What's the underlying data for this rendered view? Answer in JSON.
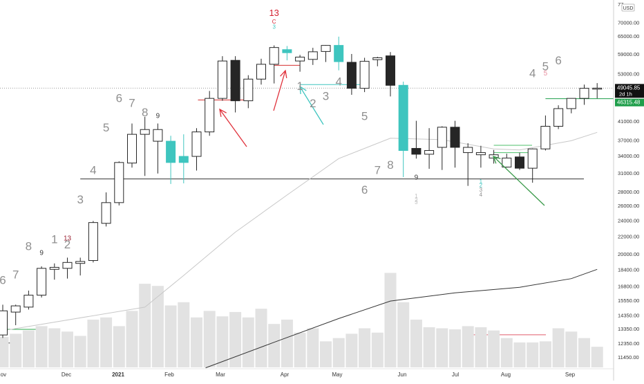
{
  "chart_data": {
    "type": "candlestick",
    "currency": "USD",
    "y_scale": "log",
    "ylim": [
      10800,
      78000
    ],
    "x_axis_labels": [
      "Nov",
      "Dec",
      "2021",
      "Feb",
      "Mar",
      "Apr",
      "May",
      "Jun",
      "Jul",
      "Aug",
      "Sep"
    ],
    "price_axis_labels": [
      "11450.00",
      "12350.00",
      "13350.00",
      "14350.00",
      "15550.00",
      "16800.00",
      "18400.00",
      "20000.00",
      "22000.00",
      "24000.00",
      "26000.00",
      "28000.00",
      "31000.00",
      "34000.00",
      "37000.00",
      "41000.00",
      "45000.00",
      "53000.00",
      "59000.00",
      "65000.00",
      "70000.00",
      "77"
    ],
    "last_price_label": "49045.85",
    "countdown_label": "2d 1h",
    "green_level_label": "46315.48",
    "green_level_color": "#1e9e4a",
    "bull_teal_color": "#3ec5bf",
    "bear_color": "#262626",
    "candles": [
      {
        "o": 12900,
        "h": 15200,
        "l": 12700,
        "c": 14700,
        "kind": "up"
      },
      {
        "o": 14600,
        "h": 15200,
        "l": 13600,
        "c": 15100,
        "kind": "up"
      },
      {
        "o": 15000,
        "h": 16400,
        "l": 14800,
        "c": 16000,
        "kind": "up"
      },
      {
        "o": 16000,
        "h": 18700,
        "l": 15800,
        "c": 18500,
        "kind": "up"
      },
      {
        "o": 18400,
        "h": 19000,
        "l": 17400,
        "c": 18600,
        "kind": "up"
      },
      {
        "o": 18500,
        "h": 19600,
        "l": 17500,
        "c": 19100,
        "kind": "up"
      },
      {
        "o": 19000,
        "h": 19600,
        "l": 17800,
        "c": 19200,
        "kind": "up"
      },
      {
        "o": 19300,
        "h": 23900,
        "l": 19100,
        "c": 23700,
        "kind": "up"
      },
      {
        "o": 23600,
        "h": 27900,
        "l": 23200,
        "c": 26400,
        "kind": "up"
      },
      {
        "o": 26400,
        "h": 33000,
        "l": 26000,
        "c": 32800,
        "kind": "up"
      },
      {
        "o": 32700,
        "h": 40500,
        "l": 31900,
        "c": 38200,
        "kind": "up"
      },
      {
        "o": 38200,
        "h": 42000,
        "l": 30500,
        "c": 39200,
        "kind": "up"
      },
      {
        "o": 39200,
        "h": 40500,
        "l": 30900,
        "c": 36800,
        "kind": "up"
      },
      {
        "o": 36800,
        "h": 37900,
        "l": 29200,
        "c": 32800,
        "kind": "bull_teal"
      },
      {
        "o": 32800,
        "h": 38200,
        "l": 29300,
        "c": 33900,
        "kind": "bull_teal"
      },
      {
        "o": 33900,
        "h": 39500,
        "l": 31400,
        "c": 38700,
        "kind": "up"
      },
      {
        "o": 38700,
        "h": 48300,
        "l": 37900,
        "c": 46400,
        "kind": "up"
      },
      {
        "o": 46400,
        "h": 58300,
        "l": 45800,
        "c": 56800,
        "kind": "up"
      },
      {
        "o": 57000,
        "h": 58300,
        "l": 43000,
        "c": 45800,
        "kind": "down"
      },
      {
        "o": 45800,
        "h": 52600,
        "l": 44000,
        "c": 51500,
        "kind": "up"
      },
      {
        "o": 51500,
        "h": 57500,
        "l": 50000,
        "c": 55800,
        "kind": "up"
      },
      {
        "o": 55800,
        "h": 61800,
        "l": 50300,
        "c": 61100,
        "kind": "up"
      },
      {
        "o": 60400,
        "h": 61600,
        "l": 57000,
        "c": 59400,
        "kind": "bull_teal"
      },
      {
        "o": 56800,
        "h": 58700,
        "l": 53600,
        "c": 58000,
        "kind": "up"
      },
      {
        "o": 57300,
        "h": 61000,
        "l": 55600,
        "c": 59700,
        "kind": "up"
      },
      {
        "o": 59800,
        "h": 61900,
        "l": 56500,
        "c": 61800,
        "kind": "up"
      },
      {
        "o": 61800,
        "h": 64800,
        "l": 54000,
        "c": 56600,
        "kind": "bull_teal"
      },
      {
        "o": 56400,
        "h": 59000,
        "l": 47300,
        "c": 49000,
        "kind": "down"
      },
      {
        "o": 49000,
        "h": 57800,
        "l": 48000,
        "c": 56700,
        "kind": "up"
      },
      {
        "o": 57200,
        "h": 58100,
        "l": 55200,
        "c": 57800,
        "kind": "up"
      },
      {
        "o": 58400,
        "h": 59600,
        "l": 46900,
        "c": 49800,
        "kind": "down"
      },
      {
        "o": 49800,
        "h": 50800,
        "l": 30300,
        "c": 35000,
        "kind": "bull_teal"
      },
      {
        "o": 35400,
        "h": 41100,
        "l": 33500,
        "c": 34300,
        "kind": "down"
      },
      {
        "o": 34300,
        "h": 39500,
        "l": 31700,
        "c": 35000,
        "kind": "up"
      },
      {
        "o": 35600,
        "h": 39900,
        "l": 31500,
        "c": 39700,
        "kind": "up"
      },
      {
        "o": 39700,
        "h": 41100,
        "l": 31900,
        "c": 35600,
        "kind": "down"
      },
      {
        "o": 35600,
        "h": 36400,
        "l": 28900,
        "c": 34600,
        "kind": "up"
      },
      {
        "o": 34600,
        "h": 35900,
        "l": 31900,
        "c": 34200,
        "kind": "up"
      },
      {
        "o": 34200,
        "h": 35100,
        "l": 32600,
        "c": 33600,
        "kind": "up"
      },
      {
        "o": 33600,
        "h": 34400,
        "l": 31900,
        "c": 32000,
        "kind": "up"
      },
      {
        "o": 33800,
        "h": 34600,
        "l": 31500,
        "c": 31800,
        "kind": "down"
      },
      {
        "o": 31800,
        "h": 35400,
        "l": 29400,
        "c": 35300,
        "kind": "up"
      },
      {
        "o": 35300,
        "h": 42300,
        "l": 35000,
        "c": 39900,
        "kind": "up"
      },
      {
        "o": 39900,
        "h": 44700,
        "l": 39300,
        "c": 43900,
        "kind": "up"
      },
      {
        "o": 43900,
        "h": 46400,
        "l": 42800,
        "c": 46400,
        "kind": "up"
      },
      {
        "o": 46400,
        "h": 50000,
        "l": 44800,
        "c": 49000,
        "kind": "up"
      },
      {
        "o": 49000,
        "h": 50400,
        "l": 46400,
        "c": 49045.85,
        "kind": "up"
      }
    ],
    "volume": [
      28,
      31,
      34,
      38,
      36,
      33,
      29,
      44,
      46,
      38,
      52,
      77,
      75,
      57,
      60,
      46,
      52,
      47,
      51,
      46,
      54,
      40,
      44,
      32,
      36,
      24,
      27,
      31,
      36,
      32,
      87,
      60,
      44,
      37,
      36,
      35,
      38,
      37,
      34,
      27,
      23,
      23,
      24,
      36,
      33,
      27,
      19
    ],
    "ma_short_points": [
      [
        0,
        13200
      ],
      [
        11,
        15000
      ],
      [
        14,
        17800
      ],
      [
        18,
        22500
      ],
      [
        22,
        27500
      ],
      [
        26,
        33500
      ],
      [
        30,
        37400
      ],
      [
        34,
        37100
      ],
      [
        38,
        35300
      ],
      [
        40,
        35100
      ],
      [
        44,
        36900
      ],
      [
        46,
        38600
      ]
    ],
    "ma_long_points": [
      [
        15.7,
        10800
      ],
      [
        21,
        12400
      ],
      [
        26,
        14100
      ],
      [
        30,
        15500
      ],
      [
        35,
        16200
      ],
      [
        40,
        16700
      ],
      [
        44,
        17500
      ],
      [
        46,
        18400
      ]
    ],
    "horizontal_lines": [
      {
        "kind": "support",
        "price": 30000
      },
      {
        "kind": "red_level",
        "price": 46000
      },
      {
        "kind": "green_level",
        "price": 46315.48
      },
      {
        "kind": "green_short",
        "price": 36000
      },
      {
        "kind": "green_short",
        "price": 34600
      },
      {
        "kind": "teal_level",
        "price": 50000
      },
      {
        "kind": "green_left",
        "price": 13300
      },
      {
        "kind": "black_left",
        "price": 12350
      },
      {
        "kind": "red_volume_line",
        "volume": 30
      }
    ],
    "td_count_labels": [
      {
        "text": "6",
        "i": 0,
        "price": 17000,
        "color": "#8f8f8f",
        "size": "large"
      },
      {
        "text": "7",
        "i": 1,
        "price": 17500,
        "color": "#8f8f8f",
        "size": "large"
      },
      {
        "text": "8",
        "i": 2,
        "price": 20400,
        "color": "#8f8f8f",
        "size": "large"
      },
      {
        "text": "9",
        "i": 3,
        "price": 19900,
        "color": "#3a3a3a",
        "size": "small"
      },
      {
        "text": "1",
        "i": 4,
        "price": 21200,
        "color": "#8f8f8f",
        "size": "large"
      },
      {
        "text": "2",
        "i": 5,
        "price": 20600,
        "color": "#8f8f8f",
        "size": "large"
      },
      {
        "text": "13",
        "i": 5,
        "price": 21500,
        "color": "#9b2335",
        "size": "small"
      },
      {
        "text": "3",
        "i": 6,
        "price": 26300,
        "color": "#8f8f8f",
        "size": "large"
      },
      {
        "text": "4",
        "i": 7,
        "price": 30800,
        "color": "#8f8f8f",
        "size": "large"
      },
      {
        "text": "5",
        "i": 8,
        "price": 38800,
        "color": "#8f8f8f",
        "size": "large"
      },
      {
        "text": "6",
        "i": 9,
        "price": 45500,
        "color": "#8f8f8f",
        "size": "large"
      },
      {
        "text": "7",
        "i": 10,
        "price": 44300,
        "color": "#8f8f8f",
        "size": "large"
      },
      {
        "text": "8",
        "i": 11,
        "price": 42100,
        "color": "#8f8f8f",
        "size": "large"
      },
      {
        "text": "9",
        "i": 12,
        "price": 41700,
        "color": "#3a3a3a",
        "size": "small"
      },
      {
        "text": "1",
        "i": 23,
        "price": 48600,
        "color": "#8f8f8f",
        "size": "large"
      },
      {
        "text": "2",
        "i": 24,
        "price": 44200,
        "color": "#8f8f8f",
        "size": "large"
      },
      {
        "text": "3",
        "i": 25,
        "price": 46000,
        "color": "#8f8f8f",
        "size": "large"
      },
      {
        "text": "4",
        "i": 26,
        "price": 49800,
        "color": "#8f8f8f",
        "size": "large"
      },
      {
        "text": "13",
        "i": 21,
        "price": 72500,
        "color": "#d42030",
        "size": "medium"
      },
      {
        "text": "C",
        "i": 21,
        "price": 69600,
        "color": "#d42030",
        "size": "tiny"
      },
      {
        "text": "3",
        "i": 21,
        "price": 67700,
        "color": "#3ec5bf",
        "size": "tiny"
      },
      {
        "text": "5",
        "i": 28,
        "price": 41300,
        "color": "#8f8f8f",
        "size": "large"
      },
      {
        "text": "6",
        "i": 28,
        "price": 27700,
        "color": "#8f8f8f",
        "size": "large"
      },
      {
        "text": "7",
        "i": 29,
        "price": 30800,
        "color": "#8f8f8f",
        "size": "large"
      },
      {
        "text": "8",
        "i": 30,
        "price": 31700,
        "color": "#8f8f8f",
        "size": "large"
      },
      {
        "text": "9",
        "i": 32,
        "price": 29900,
        "color": "#3a3a3a",
        "size": "small"
      },
      {
        "text": "1",
        "i": 32,
        "price": 27100,
        "color": "#c0c0c0",
        "size": "tiny"
      },
      {
        "text": "2",
        "i": 32,
        "price": 26500,
        "color": "#c0c0c0",
        "size": "tiny"
      },
      {
        "text": "3",
        "i": 32,
        "price": 26200,
        "color": "#c0c0c0",
        "size": "tiny"
      },
      {
        "text": "1",
        "i": 37,
        "price": 29300,
        "color": "#3ec5bf",
        "size": "tiny"
      },
      {
        "text": "2",
        "i": 37,
        "price": 28700,
        "color": "#3ec5bf",
        "size": "tiny"
      },
      {
        "text": "3",
        "i": 37,
        "price": 28000,
        "color": "#8f8f8f",
        "size": "tiny"
      },
      {
        "text": "4",
        "i": 37,
        "price": 27300,
        "color": "#8f8f8f",
        "size": "tiny"
      },
      {
        "text": "4",
        "i": 41,
        "price": 52000,
        "color": "#8f8f8f",
        "size": "large"
      },
      {
        "text": "5",
        "i": 42,
        "price": 54000,
        "color": "#8f8f8f",
        "size": "large"
      },
      {
        "text": "5",
        "i": 42,
        "price": 52500,
        "color": "#e88fa0",
        "size": "small"
      },
      {
        "text": "6",
        "i": 43,
        "price": 55800,
        "color": "#8f8f8f",
        "size": "large"
      }
    ]
  }
}
